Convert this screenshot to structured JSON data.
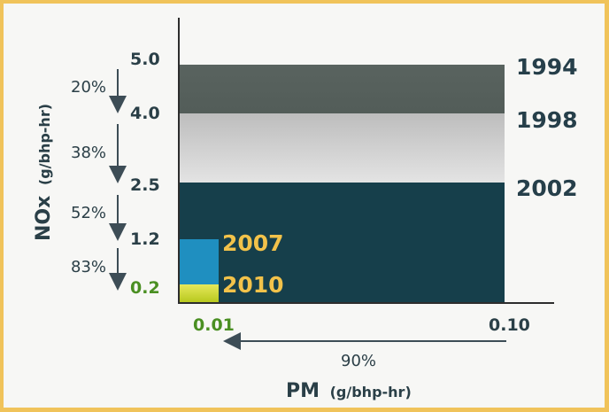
{
  "chart_data": {
    "type": "bar",
    "xlabel": "PM",
    "xunit": "(g/bhp-hr)",
    "ylabel": "NOx",
    "yunit": "(g/bhp-hr)",
    "standards": [
      {
        "year": "1994",
        "nox": 5.0,
        "pm": 0.1,
        "color": "#45514d",
        "labelColor": "#263f4a"
      },
      {
        "year": "1998",
        "nox": 4.0,
        "pm": 0.1,
        "color": "#cfcfcf",
        "labelColor": "#263f4a"
      },
      {
        "year": "2002",
        "nox": 2.5,
        "pm": 0.1,
        "color": "#163f4b",
        "labelColor": "#263f4a"
      },
      {
        "year": "2007",
        "nox": 1.2,
        "pm": 0.01,
        "color": "#1f8fc0",
        "labelColor": "#f2c24a"
      },
      {
        "year": "2010",
        "nox": 0.2,
        "pm": 0.01,
        "color": "#d3d428",
        "labelColor": "#f2c24a"
      }
    ],
    "y_ticks": [
      "5.0",
      "4.0",
      "2.5",
      "1.2",
      "0.2"
    ],
    "x_ticks": [
      "0.01",
      "0.10"
    ],
    "nox_reductions": [
      "20%",
      "38%",
      "52%",
      "83%"
    ],
    "pm_reduction": "90%",
    "colors": {
      "axis": "#2d2d2d",
      "tick_text": "#2a3f47",
      "green_text": "#4a8f22",
      "pct_text": "#2b3f47",
      "arrow": "#3d4d56"
    }
  }
}
